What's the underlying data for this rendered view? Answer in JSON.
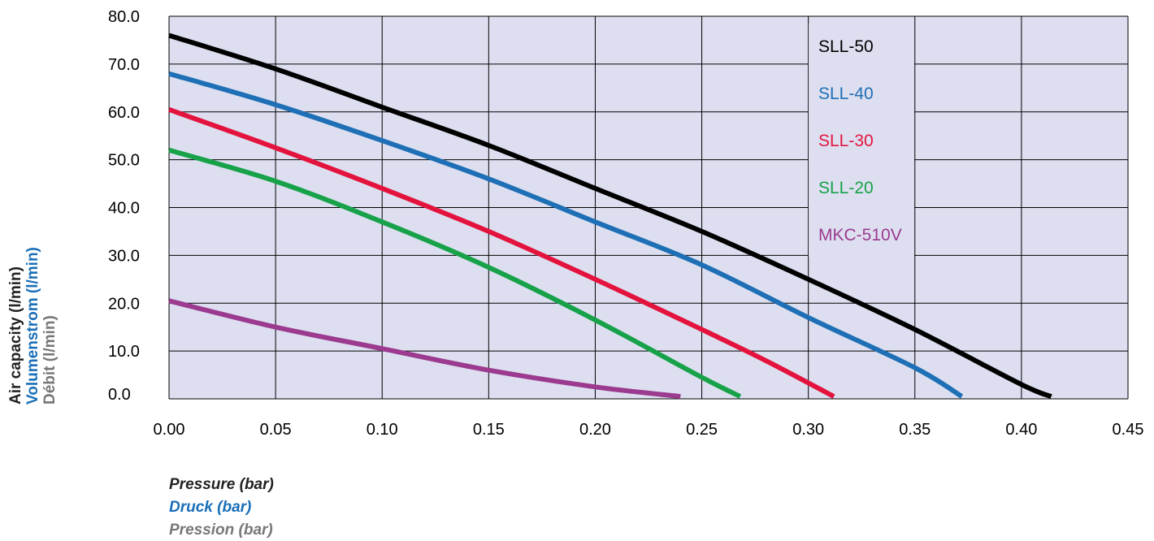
{
  "chart_data": {
    "type": "line",
    "title": "",
    "x_range": [
      0,
      0.45
    ],
    "y_range": [
      0,
      80
    ],
    "x_ticks": [
      "0.00",
      "0.05",
      "0.10",
      "0.15",
      "0.20",
      "0.25",
      "0.30",
      "0.35",
      "0.40",
      "0.45"
    ],
    "y_ticks": [
      "0.0",
      "10.0",
      "20.0",
      "30.0",
      "40.0",
      "50.0",
      "60.0",
      "70.0",
      "80.0"
    ],
    "grid": true,
    "plot_background": "#dddff0",
    "legend_placement": "top-right inside plot",
    "ylabels": [
      {
        "text": "Air capacity (l/min)",
        "color": "#222222"
      },
      {
        "text": "Volumenstrom (l/min)",
        "color": "#1a6fb8"
      },
      {
        "text": "Débit (l/min)",
        "color": "#777777"
      }
    ],
    "xlabels": [
      {
        "text": "Pressure (bar)",
        "color": "#222222"
      },
      {
        "text": "Druck (bar)",
        "color": "#1a6fb8"
      },
      {
        "text": "Pression (bar)",
        "color": "#777777"
      }
    ],
    "series": [
      {
        "name": "SLL-50",
        "color": "#000000",
        "x": [
          0,
          0.05,
          0.1,
          0.15,
          0.2,
          0.25,
          0.3,
          0.35,
          0.4,
          0.414
        ],
        "y": [
          76,
          69,
          61,
          53,
          44,
          35,
          25,
          14.5,
          3,
          0.5
        ]
      },
      {
        "name": "SLL-40",
        "color": "#1e6fb5",
        "x": [
          0,
          0.05,
          0.1,
          0.15,
          0.2,
          0.25,
          0.3,
          0.35,
          0.372
        ],
        "y": [
          68,
          61.5,
          54,
          46,
          37,
          28,
          17,
          6.5,
          0.5
        ]
      },
      {
        "name": "SLL-30",
        "color": "#e3133d",
        "x": [
          0,
          0.05,
          0.1,
          0.15,
          0.2,
          0.25,
          0.28,
          0.312
        ],
        "y": [
          60.5,
          52.5,
          44,
          35,
          25,
          14.5,
          8,
          0.5
        ]
      },
      {
        "name": "SLL-20",
        "color": "#17a24a",
        "x": [
          0,
          0.05,
          0.1,
          0.15,
          0.2,
          0.25,
          0.268
        ],
        "y": [
          52,
          45.5,
          37,
          27.5,
          16.5,
          4.5,
          0.5
        ]
      },
      {
        "name": "MKC-510V",
        "color": "#9b3a8f",
        "x": [
          0,
          0.05,
          0.1,
          0.15,
          0.2,
          0.24
        ],
        "y": [
          20.5,
          15,
          10.5,
          6,
          2.5,
          0.5
        ]
      }
    ]
  }
}
